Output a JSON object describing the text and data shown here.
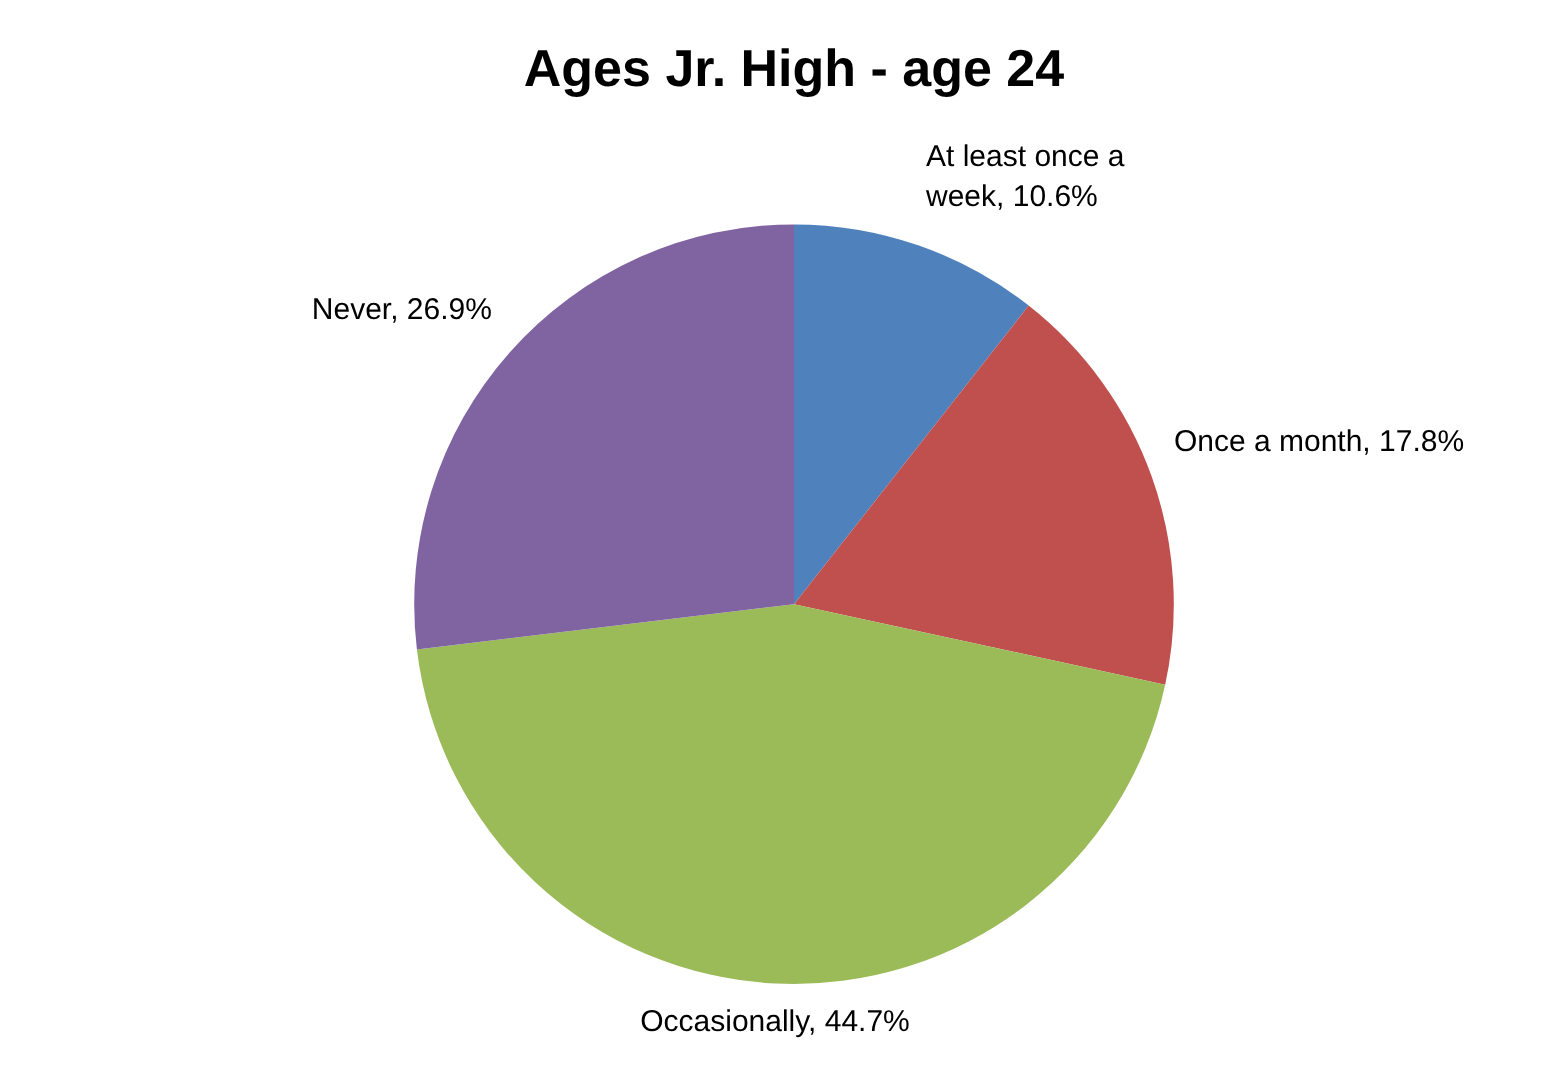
{
  "chart_data": {
    "type": "pie",
    "title": "Ages Jr. High - age 24",
    "categories": [
      "At least once a week",
      "Once a month",
      "Occasionally",
      "Never"
    ],
    "values": [
      10.6,
      17.8,
      44.7,
      26.9
    ],
    "value_labels": [
      "10.6%",
      "17.8%",
      "44.7%",
      "26.9%"
    ],
    "colors": [
      "#4f81bd",
      "#c0504d",
      "#9bbb59",
      "#8064a2"
    ],
    "legend": false
  }
}
